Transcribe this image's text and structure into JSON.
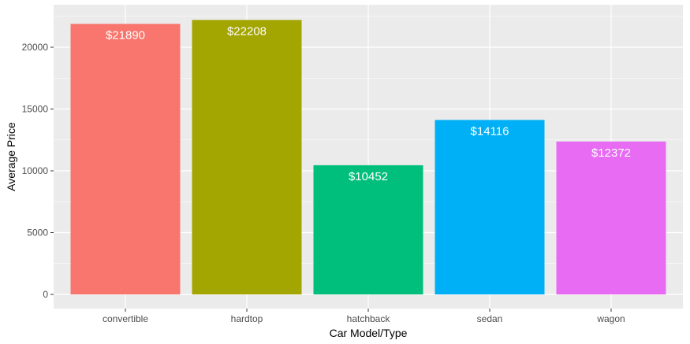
{
  "chart_data": {
    "type": "bar",
    "categories": [
      "convertible",
      "hardtop",
      "hatchback",
      "sedan",
      "wagon"
    ],
    "values": [
      21890,
      22208,
      10452,
      14116,
      12372
    ],
    "data_labels": [
      "$21890",
      "$22208",
      "$10452",
      "$14116",
      "$12372"
    ],
    "colors": [
      "#F8766D",
      "#A3A500",
      "#00BF7D",
      "#00B0F6",
      "#E76BF3"
    ],
    "xlabel": "Car Model/Type",
    "ylabel": "Average Price",
    "ylim": [
      0,
      23319
    ],
    "yticks": [
      0,
      5000,
      10000,
      15000,
      20000
    ],
    "ytick_labels": [
      "0",
      "5000",
      "10000",
      "15000",
      "20000"
    ],
    "grid": true,
    "legend": "none",
    "panel_background": "#EBEBEB",
    "grid_color": "#FFFFFF"
  }
}
